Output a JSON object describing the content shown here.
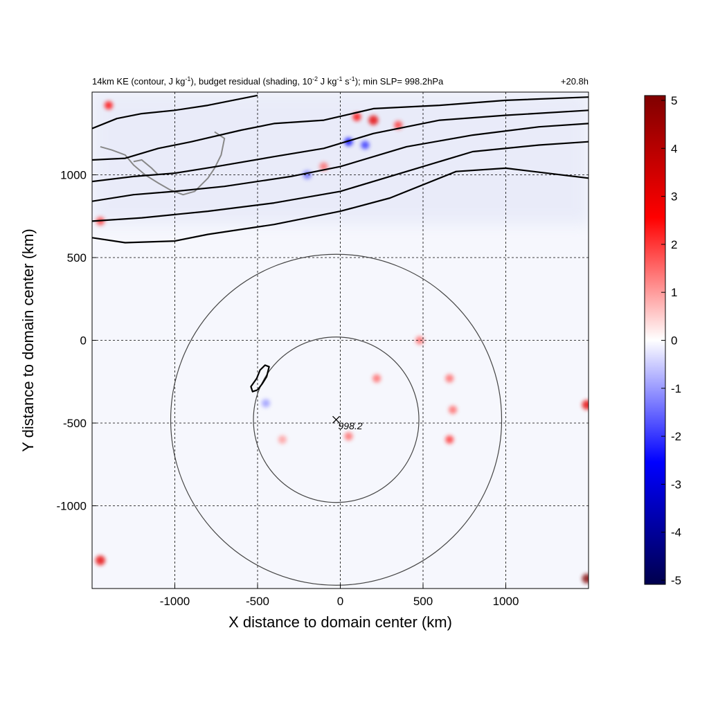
{
  "chart_data": {
    "type": "heatmap",
    "title": "14km KE (contour, J kg",
    "title_parts": {
      "a": "14km KE (contour, J kg",
      "a_sup": "-1",
      "b": "), budget residual (shading, 10",
      "b_sup": "-2",
      "c": " J kg",
      "c_sup": "-1",
      "d": " s",
      "d_sup": "-1",
      "e": "); min SLP= 998.2hPa"
    },
    "time_label": "+20.8h",
    "xlabel": "X distance to domain center (km)",
    "ylabel": "Y distance to domain center (km)",
    "xlim": [
      -1500,
      1500
    ],
    "ylim": [
      -1500,
      1500
    ],
    "xticks": [
      -1000,
      -500,
      0,
      500,
      1000
    ],
    "xtick_labels": [
      "-1000",
      "-500",
      "0",
      "500",
      "1000"
    ],
    "yticks": [
      -1000,
      -500,
      0,
      500,
      1000
    ],
    "ytick_labels": [
      "-1000",
      "-500",
      "0",
      "500",
      "1000"
    ],
    "grid": true,
    "colorbar": {
      "min": -5,
      "max": 5,
      "ticks": [
        5,
        4,
        3,
        2,
        1,
        0,
        -1,
        -2,
        -3,
        -4,
        -5
      ],
      "tick_labels": [
        "5",
        "4",
        "3",
        "2",
        "1",
        "0",
        "-1",
        "-2",
        "-3",
        "-4",
        "-5"
      ],
      "colormap": "seismic"
    },
    "center": {
      "x": -25,
      "y": -480,
      "label": "998.2"
    },
    "range_rings_km": [
      500,
      1000
    ],
    "ke_contours": [
      {
        "points": [
          [
            -1500,
            620
          ],
          [
            -1300,
            590
          ],
          [
            -1000,
            600
          ],
          [
            -800,
            640
          ],
          [
            -400,
            700
          ],
          [
            0,
            780
          ],
          [
            300,
            860
          ],
          [
            700,
            1020
          ],
          [
            1000,
            1040
          ],
          [
            1500,
            980
          ]
        ]
      },
      {
        "points": [
          [
            -1500,
            720
          ],
          [
            -1200,
            740
          ],
          [
            -800,
            780
          ],
          [
            -400,
            830
          ],
          [
            0,
            900
          ],
          [
            400,
            1020
          ],
          [
            800,
            1140
          ],
          [
            1200,
            1180
          ],
          [
            1500,
            1200
          ]
        ]
      },
      {
        "points": [
          [
            -1500,
            840
          ],
          [
            -1250,
            880
          ],
          [
            -1000,
            900
          ],
          [
            -700,
            930
          ],
          [
            -300,
            990
          ],
          [
            0,
            1050
          ],
          [
            400,
            1170
          ],
          [
            800,
            1240
          ],
          [
            1200,
            1290
          ],
          [
            1500,
            1310
          ]
        ]
      },
      {
        "points": [
          [
            -1500,
            960
          ],
          [
            -1250,
            990
          ],
          [
            -1000,
            1010
          ],
          [
            -750,
            1050
          ],
          [
            -400,
            1110
          ],
          [
            -100,
            1160
          ],
          [
            200,
            1250
          ],
          [
            600,
            1330
          ],
          [
            1000,
            1360
          ],
          [
            1500,
            1390
          ]
        ]
      },
      {
        "points": [
          [
            -1500,
            1090
          ],
          [
            -1300,
            1100
          ],
          [
            -1100,
            1160
          ],
          [
            -900,
            1200
          ],
          [
            -600,
            1270
          ],
          [
            -400,
            1310
          ],
          [
            -100,
            1330
          ],
          [
            200,
            1400
          ],
          [
            600,
            1420
          ],
          [
            1000,
            1450
          ],
          [
            1500,
            1470
          ]
        ]
      },
      {
        "points": [
          [
            -1500,
            1280
          ],
          [
            -1350,
            1340
          ],
          [
            -1200,
            1370
          ],
          [
            -1000,
            1390
          ],
          [
            -800,
            1420
          ],
          [
            -650,
            1450
          ],
          [
            -500,
            1480
          ]
        ]
      },
      {
        "points": [
          [
            -500,
            -300
          ],
          [
            -470,
            -260
          ],
          [
            -445,
            -220
          ],
          [
            -430,
            -160
          ],
          [
            -455,
            -150
          ],
          [
            -485,
            -180
          ],
          [
            -505,
            -230
          ],
          [
            -540,
            -280
          ],
          [
            -530,
            -310
          ],
          [
            -500,
            -300
          ]
        ]
      }
    ],
    "coast_outlines": [
      {
        "points": [
          [
            -1450,
            1170
          ],
          [
            -1380,
            1150
          ],
          [
            -1300,
            1120
          ],
          [
            -1250,
            1060
          ],
          [
            -1180,
            1000
          ],
          [
            -1100,
            950
          ],
          [
            -1030,
            910
          ],
          [
            -950,
            880
          ],
          [
            -880,
            900
          ],
          [
            -800,
            980
          ],
          [
            -760,
            1040
          ],
          [
            -720,
            1120
          ],
          [
            -700,
            1220
          ],
          [
            -760,
            1260
          ]
        ]
      },
      {
        "points": [
          [
            -1250,
            1080
          ],
          [
            -1200,
            1090
          ],
          [
            -1140,
            1040
          ],
          [
            -1100,
            1000
          ]
        ]
      }
    ],
    "residual_anomalies": [
      {
        "x": -1400,
        "y": 1420,
        "v": 2.5
      },
      {
        "x": -1450,
        "y": 720,
        "v": 2.0
      },
      {
        "x": 100,
        "y": 1350,
        "v": 2.5
      },
      {
        "x": 200,
        "y": 1330,
        "v": 3.0
      },
      {
        "x": 350,
        "y": 1300,
        "v": 2.0
      },
      {
        "x": 50,
        "y": 1200,
        "v": -2.5
      },
      {
        "x": 150,
        "y": 1180,
        "v": -2.0
      },
      {
        "x": -200,
        "y": 1000,
        "v": -1.5
      },
      {
        "x": -100,
        "y": 1050,
        "v": 1.5
      },
      {
        "x": 480,
        "y": 0,
        "v": 1.5
      },
      {
        "x": 660,
        "y": -230,
        "v": 1.5
      },
      {
        "x": 680,
        "y": -420,
        "v": 1.5
      },
      {
        "x": 660,
        "y": -600,
        "v": 2.0
      },
      {
        "x": 220,
        "y": -230,
        "v": 1.5
      },
      {
        "x": 50,
        "y": -580,
        "v": 1.5
      },
      {
        "x": 1490,
        "y": -390,
        "v": 3.0
      },
      {
        "x": 1490,
        "y": -1440,
        "v": 5.0
      },
      {
        "x": -1450,
        "y": -1330,
        "v": 3.0
      },
      {
        "x": -450,
        "y": -380,
        "v": -1.0
      },
      {
        "x": -350,
        "y": -600,
        "v": 1.0
      }
    ]
  }
}
